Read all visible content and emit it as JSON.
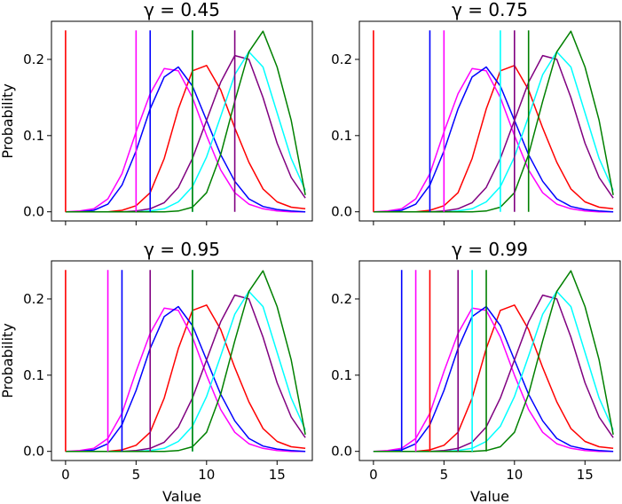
{
  "chart_data": [
    {
      "type": "line",
      "title": "γ = 0.45",
      "xlabel": "",
      "ylabel": "Probability",
      "xlim": [
        -1,
        17.5
      ],
      "ylim": [
        -0.012,
        0.25
      ],
      "x_ticks": [
        0,
        5,
        10,
        15
      ],
      "y_ticks": [
        0.0,
        0.1,
        0.2
      ],
      "x_ticklabels": [
        "",
        "",
        "",
        ""
      ],
      "y_ticklabels": [
        "0.0",
        "0.1",
        "0.2"
      ],
      "vlines": [
        {
          "color": "#ff0000",
          "x": 0
        },
        {
          "color": "#ff00ff",
          "x": 5
        },
        {
          "color": "#0000ff",
          "x": 6
        },
        {
          "color": "#00ffff",
          "x": 9
        },
        {
          "color": "#800080",
          "x": 12
        },
        {
          "color": "#008000",
          "x": 9
        }
      ]
    },
    {
      "type": "line",
      "title": "γ = 0.75",
      "xlabel": "",
      "ylabel": "",
      "xlim": [
        -1,
        17.5
      ],
      "ylim": [
        -0.012,
        0.25
      ],
      "x_ticks": [
        0,
        5,
        10,
        15
      ],
      "y_ticks": [
        0.0,
        0.1,
        0.2
      ],
      "x_ticklabels": [
        "",
        "",
        "",
        ""
      ],
      "y_ticklabels": [
        "0.0",
        "0.1",
        "0.2"
      ],
      "vlines": [
        {
          "color": "#ff0000",
          "x": 0
        },
        {
          "color": "#0000ff",
          "x": 4
        },
        {
          "color": "#ff00ff",
          "x": 5
        },
        {
          "color": "#00ffff",
          "x": 9
        },
        {
          "color": "#800080",
          "x": 10
        },
        {
          "color": "#008000",
          "x": 11
        }
      ]
    },
    {
      "type": "line",
      "title": "γ = 0.95",
      "xlabel": "Value",
      "ylabel": "Probability",
      "xlim": [
        -1,
        17.5
      ],
      "ylim": [
        -0.012,
        0.25
      ],
      "x_ticks": [
        0,
        5,
        10,
        15
      ],
      "y_ticks": [
        0.0,
        0.1,
        0.2
      ],
      "x_ticklabels": [
        "0",
        "5",
        "10",
        "15"
      ],
      "y_ticklabels": [
        "0.0",
        "0.1",
        "0.2"
      ],
      "vlines": [
        {
          "color": "#ff0000",
          "x": 0
        },
        {
          "color": "#ff00ff",
          "x": 3
        },
        {
          "color": "#0000ff",
          "x": 4
        },
        {
          "color": "#800080",
          "x": 6
        },
        {
          "color": "#00ffff",
          "x": 9
        },
        {
          "color": "#008000",
          "x": 9
        }
      ]
    },
    {
      "type": "line",
      "title": "γ = 0.99",
      "xlabel": "Value",
      "ylabel": "",
      "xlim": [
        -1,
        17.5
      ],
      "ylim": [
        -0.012,
        0.25
      ],
      "x_ticks": [
        0,
        5,
        10,
        15
      ],
      "y_ticks": [
        0.0,
        0.1,
        0.2
      ],
      "x_ticklabels": [
        "0",
        "5",
        "10",
        "15"
      ],
      "y_ticklabels": [
        "0.0",
        "0.1",
        "0.2"
      ],
      "vlines": [
        {
          "color": "#0000ff",
          "x": 2
        },
        {
          "color": "#ff00ff",
          "x": 3
        },
        {
          "color": "#ff0000",
          "x": 4
        },
        {
          "color": "#800080",
          "x": 6
        },
        {
          "color": "#00ffff",
          "x": 7
        },
        {
          "color": "#008000",
          "x": 8
        }
      ]
    }
  ],
  "curves": {
    "x": [
      0,
      1,
      2,
      3,
      4,
      5,
      6,
      7,
      8,
      9,
      10,
      11,
      12,
      13,
      14,
      15,
      16,
      17
    ],
    "series": [
      {
        "color": "#ff0000",
        "values": [
          0.0,
          0.0,
          0.0,
          0.0,
          0.002,
          0.008,
          0.025,
          0.07,
          0.135,
          0.185,
          0.192,
          0.16,
          0.11,
          0.065,
          0.03,
          0.013,
          0.006,
          0.004
        ]
      },
      {
        "color": "#ff00ff",
        "values": [
          0.0,
          0.001,
          0.004,
          0.017,
          0.05,
          0.105,
          0.155,
          0.188,
          0.185,
          0.15,
          0.1,
          0.055,
          0.025,
          0.01,
          0.004,
          0.001,
          0.0,
          0.0
        ]
      },
      {
        "color": "#0000ff",
        "values": [
          0.0,
          0.0,
          0.002,
          0.01,
          0.035,
          0.08,
          0.135,
          0.177,
          0.19,
          0.165,
          0.12,
          0.075,
          0.04,
          0.017,
          0.007,
          0.003,
          0.001,
          0.0
        ]
      },
      {
        "color": "#800080",
        "values": [
          0.0,
          0.0,
          0.0,
          0.0,
          0.0,
          0.001,
          0.004,
          0.012,
          0.032,
          0.07,
          0.12,
          0.17,
          0.205,
          0.2,
          0.15,
          0.09,
          0.045,
          0.018
        ]
      },
      {
        "color": "#00ffff",
        "values": [
          0.0,
          0.0,
          0.0,
          0.0,
          0.0,
          0.0,
          0.001,
          0.004,
          0.013,
          0.033,
          0.072,
          0.125,
          0.18,
          0.21,
          0.19,
          0.13,
          0.07,
          0.028
        ]
      },
      {
        "color": "#008000",
        "values": [
          0.0,
          0.0,
          0.0,
          0.0,
          0.0,
          0.0,
          0.0,
          0.0,
          0.001,
          0.006,
          0.025,
          0.075,
          0.145,
          0.21,
          0.237,
          0.19,
          0.12,
          0.022
        ]
      }
    ]
  }
}
